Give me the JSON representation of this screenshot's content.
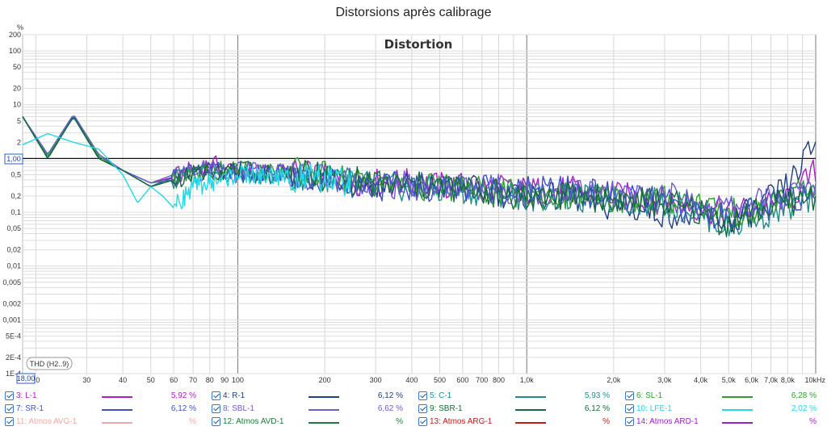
{
  "window": {
    "title": "Distorsions après calibrage"
  },
  "chart_data": {
    "type": "line",
    "title": "Distortion",
    "xscale": "log",
    "yscale": "log",
    "xlim": [
      18,
      10000
    ],
    "ylim": [
      0.0001,
      200
    ],
    "ylabel": "%",
    "xunit": "Hz",
    "x_start_label": "18,00",
    "y_cursor_label": "1,00",
    "x_tick_labels": [
      {
        "v": 20,
        "t": "20"
      },
      {
        "v": 30,
        "t": "30"
      },
      {
        "v": 40,
        "t": "40"
      },
      {
        "v": 50,
        "t": "50"
      },
      {
        "v": 60,
        "t": "60"
      },
      {
        "v": 70,
        "t": "70"
      },
      {
        "v": 80,
        "t": "80"
      },
      {
        "v": 90,
        "t": "90"
      },
      {
        "v": 100,
        "t": "100"
      },
      {
        "v": 200,
        "t": "200"
      },
      {
        "v": 300,
        "t": "300"
      },
      {
        "v": 400,
        "t": "400"
      },
      {
        "v": 500,
        "t": "500"
      },
      {
        "v": 600,
        "t": "600"
      },
      {
        "v": 700,
        "t": "700"
      },
      {
        "v": 800,
        "t": "800"
      },
      {
        "v": 1000,
        "t": "1,0k"
      },
      {
        "v": 2000,
        "t": "2,0k"
      },
      {
        "v": 3000,
        "t": "3,0k"
      },
      {
        "v": 4000,
        "t": "4,0k"
      },
      {
        "v": 5000,
        "t": "5,0k"
      },
      {
        "v": 6000,
        "t": "6,0k"
      },
      {
        "v": 7000,
        "t": "7,0k"
      },
      {
        "v": 8000,
        "t": "8,0k"
      },
      {
        "v": 10000,
        "t": "10kHz"
      }
    ],
    "y_tick_labels": [
      {
        "v": 200,
        "t": "200"
      },
      {
        "v": 100,
        "t": "100"
      },
      {
        "v": 50,
        "t": "50"
      },
      {
        "v": 20,
        "t": "20"
      },
      {
        "v": 10,
        "t": "10"
      },
      {
        "v": 5,
        "t": "5"
      },
      {
        "v": 2,
        "t": "2"
      },
      {
        "v": 0.5,
        "t": "0,5"
      },
      {
        "v": 0.2,
        "t": "0,2"
      },
      {
        "v": 0.1,
        "t": "0,1"
      },
      {
        "v": 0.05,
        "t": "0,05"
      },
      {
        "v": 0.02,
        "t": "0,02"
      },
      {
        "v": 0.01,
        "t": "0,01"
      },
      {
        "v": 0.005,
        "t": "0,005"
      },
      {
        "v": 0.002,
        "t": "0,002"
      },
      {
        "v": 0.001,
        "t": "0,001"
      },
      {
        "v": 0.0005,
        "t": "5E-4"
      },
      {
        "v": 0.0002,
        "t": "2E-4"
      },
      {
        "v": 0.0001,
        "t": "1E-4"
      }
    ],
    "annotation": "THD (H2..9)",
    "series": [
      {
        "name": "3: L-1",
        "color": "#b01cc8",
        "value": "5,92 %",
        "enabled": true,
        "x": [
          18,
          22,
          27,
          33,
          40,
          50,
          60,
          80,
          100,
          150,
          200,
          300,
          400,
          500,
          700,
          1000,
          1500,
          2000,
          3000,
          4000,
          5000,
          6000,
          8000,
          10000
        ],
        "y": [
          6,
          1.1,
          5.9,
          1.1,
          0.6,
          0.35,
          0.45,
          0.8,
          0.6,
          0.55,
          0.45,
          0.35,
          0.35,
          0.3,
          0.3,
          0.25,
          0.25,
          0.2,
          0.17,
          0.12,
          0.1,
          0.12,
          0.15,
          0.6
        ]
      },
      {
        "name": "4: R-1",
        "color": "#1f3f80",
        "value": "6,12 %",
        "enabled": true,
        "x": [
          18,
          22,
          27,
          33,
          40,
          50,
          60,
          80,
          100,
          150,
          200,
          300,
          400,
          500,
          700,
          1000,
          1500,
          2000,
          3000,
          4000,
          5000,
          6000,
          8000,
          10000
        ],
        "y": [
          6,
          1.0,
          6.1,
          1.1,
          0.6,
          0.3,
          0.45,
          0.6,
          0.5,
          0.5,
          0.45,
          0.35,
          0.3,
          0.3,
          0.25,
          0.2,
          0.18,
          0.12,
          0.1,
          0.08,
          0.07,
          0.1,
          0.3,
          2.0
        ]
      },
      {
        "name": "5: C-1",
        "color": "#1f8c8c",
        "value": "5,93 %",
        "enabled": true,
        "x": [
          18,
          22,
          27,
          33,
          40,
          50,
          60,
          80,
          100,
          150,
          200,
          300,
          400,
          500,
          700,
          1000,
          1500,
          2000,
          3000,
          4000,
          5000,
          6000,
          8000,
          10000
        ],
        "y": [
          6,
          1.1,
          5.9,
          1.0,
          0.6,
          0.3,
          0.4,
          0.6,
          0.5,
          0.5,
          0.45,
          0.3,
          0.3,
          0.25,
          0.25,
          0.2,
          0.18,
          0.17,
          0.15,
          0.1,
          0.05,
          0.08,
          0.12,
          0.18
        ]
      },
      {
        "name": "6: SL-1",
        "color": "#2ca02c",
        "value": "6,28 %",
        "enabled": true,
        "x": [
          18,
          22,
          27,
          33,
          40,
          50,
          60,
          80,
          100,
          150,
          200,
          300,
          400,
          500,
          700,
          1000,
          1500,
          2000,
          3000,
          4000,
          5000,
          6000,
          8000,
          10000
        ],
        "y": [
          6,
          1.1,
          6.3,
          1.1,
          0.6,
          0.35,
          0.4,
          0.7,
          0.6,
          0.6,
          0.5,
          0.35,
          0.3,
          0.3,
          0.25,
          0.2,
          0.2,
          0.18,
          0.17,
          0.15,
          0.1,
          0.1,
          0.2,
          0.25
        ]
      },
      {
        "name": "7: SR-1",
        "color": "#3c4fc8",
        "value": "6,12 %",
        "enabled": true,
        "x": [
          18,
          22,
          27,
          33,
          40,
          50,
          60,
          80,
          100,
          150,
          200,
          300,
          400,
          500,
          700,
          1000,
          1500,
          2000,
          3000,
          4000,
          5000,
          6000,
          8000,
          10000
        ],
        "y": [
          6,
          1.0,
          6.1,
          1.0,
          0.6,
          0.3,
          0.45,
          0.6,
          0.5,
          0.5,
          0.4,
          0.3,
          0.3,
          0.3,
          0.3,
          0.25,
          0.25,
          0.2,
          0.15,
          0.1,
          0.08,
          0.1,
          0.15,
          0.3
        ]
      },
      {
        "name": "8: SBL-1",
        "color": "#6b5cd0",
        "value": "6,62 %",
        "enabled": true,
        "x": [
          18,
          22,
          27,
          33,
          40,
          50,
          60,
          80,
          100,
          150,
          200,
          300,
          400,
          500,
          700,
          1000,
          1500,
          2000,
          3000,
          4000,
          5000,
          6000,
          8000,
          10000
        ],
        "y": [
          6,
          1.2,
          6.6,
          1.2,
          0.6,
          0.35,
          0.5,
          0.7,
          0.6,
          0.55,
          0.45,
          0.35,
          0.3,
          0.3,
          0.3,
          0.25,
          0.25,
          0.2,
          0.2,
          0.15,
          0.12,
          0.15,
          0.2,
          0.3
        ]
      },
      {
        "name": "9: SBR-1",
        "color": "#156b3a",
        "value": "6,12 %",
        "enabled": true,
        "x": [
          18,
          22,
          27,
          33,
          40,
          50,
          60,
          80,
          100,
          150,
          200,
          300,
          400,
          500,
          700,
          1000,
          1500,
          2000,
          3000,
          4000,
          5000,
          6000,
          8000,
          10000
        ],
        "y": [
          6,
          1.0,
          6.1,
          1.0,
          0.6,
          0.3,
          0.4,
          0.6,
          0.6,
          0.5,
          0.45,
          0.35,
          0.3,
          0.3,
          0.25,
          0.2,
          0.2,
          0.18,
          0.15,
          0.1,
          0.06,
          0.1,
          0.15,
          0.2
        ]
      },
      {
        "name": "10: LFE-1",
        "color": "#22d8e8",
        "value": "2,02 %",
        "enabled": true,
        "x": [
          18,
          22,
          27,
          33,
          40,
          45,
          50,
          55,
          60,
          70,
          80,
          100,
          150,
          200,
          250
        ],
        "y": [
          1.8,
          2.9,
          2.0,
          1.5,
          0.5,
          0.15,
          0.3,
          0.2,
          0.12,
          0.3,
          0.35,
          0.5,
          0.45,
          0.4,
          0.35
        ]
      },
      {
        "name": "11: Atmos AVG-1",
        "color": "#f4a6a6",
        "value": "%",
        "enabled": true,
        "x": [],
        "y": []
      },
      {
        "name": "12: Atmos AVD-1",
        "color": "#1b7a3c",
        "value": "%",
        "enabled": true,
        "x": [],
        "y": []
      },
      {
        "name": "13: Atmos ARG-1",
        "color": "#c01a1a",
        "value": "%",
        "enabled": true,
        "x": [],
        "y": []
      },
      {
        "name": "14: Atmos ARD-1",
        "color": "#9a1fd0",
        "value": "%",
        "enabled": true,
        "x": [],
        "y": []
      }
    ]
  }
}
